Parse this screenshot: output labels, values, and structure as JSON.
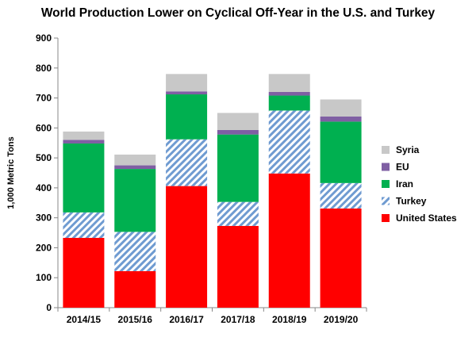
{
  "chart_data": {
    "type": "bar",
    "stacked": true,
    "title": "World Production Lower on Cyclical Off-Year in the U.S. and Turkey",
    "xlabel": "",
    "ylabel": "1,000 Metric Tons",
    "ylim": [
      0,
      900
    ],
    "yticks": [
      0,
      100,
      200,
      300,
      400,
      500,
      600,
      700,
      800,
      900
    ],
    "grid": false,
    "legend_position": "right",
    "categories": [
      "2014/15",
      "2015/16",
      "2016/17",
      "2017/18",
      "2018/19",
      "2019/20"
    ],
    "series": [
      {
        "name": "United States",
        "color": "#ff0000",
        "pattern": "solid",
        "values": [
          233,
          122,
          406,
          273,
          448,
          331
        ]
      },
      {
        "name": "Turkey",
        "color": "#4f81bd",
        "pattern": "diagonal-hatch",
        "values": [
          85,
          131,
          156,
          80,
          210,
          85
        ]
      },
      {
        "name": "Iran",
        "color": "#00b050",
        "pattern": "solid",
        "values": [
          230,
          210,
          150,
          225,
          50,
          205
        ]
      },
      {
        "name": "EU",
        "color": "#7f5fa3",
        "pattern": "solid",
        "values": [
          12,
          12,
          10,
          15,
          12,
          17
        ]
      },
      {
        "name": "Syria",
        "color": "#c8c8c8",
        "pattern": "solid",
        "values": [
          28,
          36,
          58,
          57,
          60,
          57
        ]
      }
    ]
  }
}
